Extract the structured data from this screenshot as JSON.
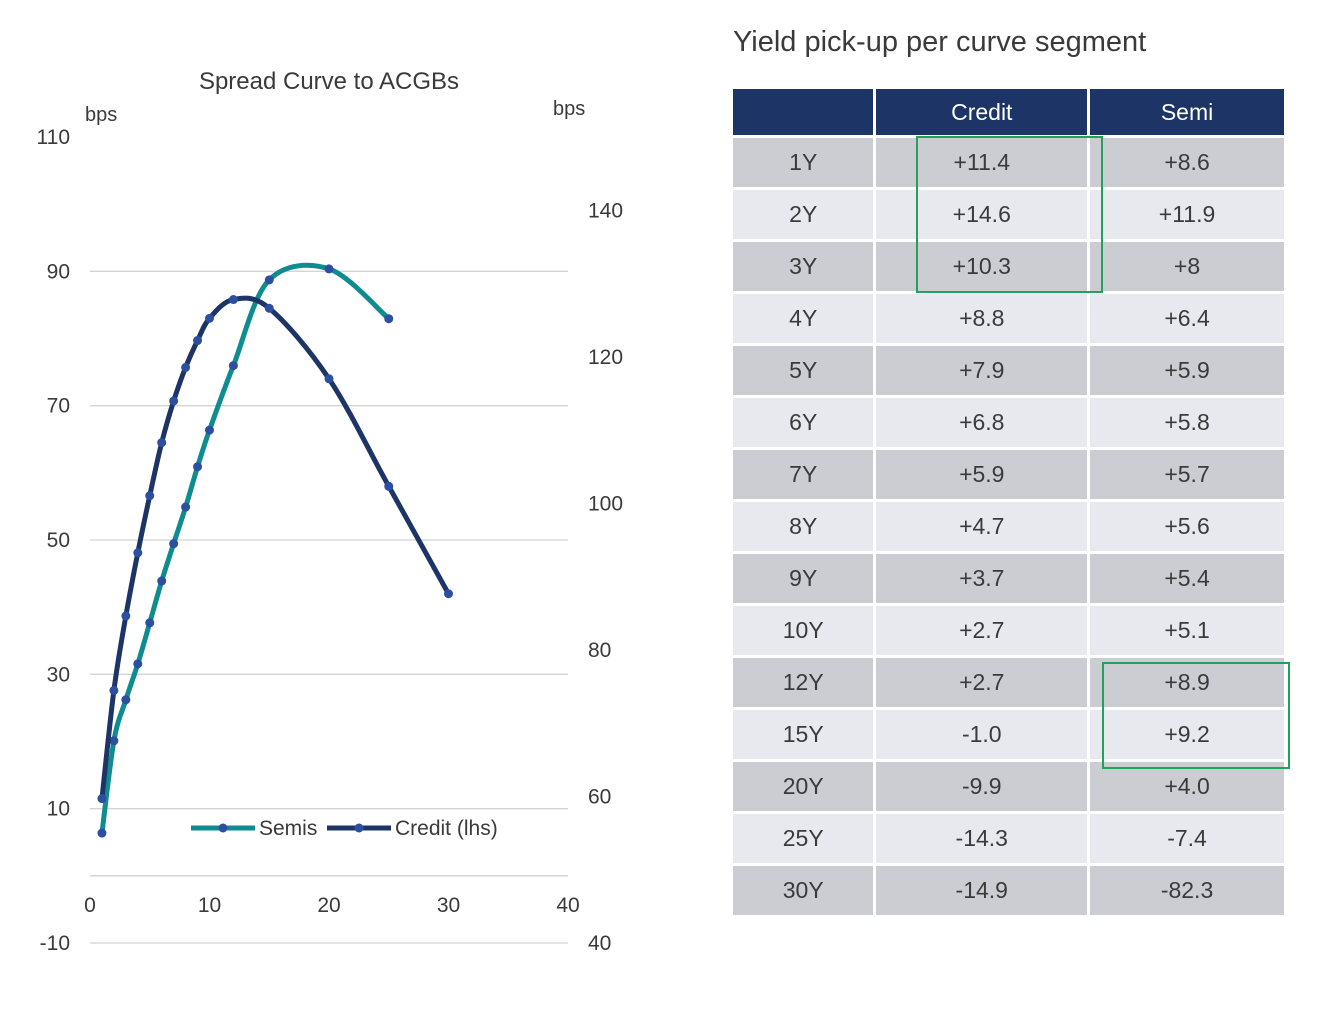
{
  "chart_data": {
    "type": "line",
    "title": "Spread Curve to ACGBs",
    "left_axis_unit": "bps",
    "right_axis_unit": "bps",
    "x_ticks": [
      0,
      10,
      20,
      30,
      40
    ],
    "xlim": [
      0,
      40
    ],
    "y_left_ticks": [
      110,
      90,
      70,
      50,
      30,
      10,
      -10
    ],
    "ylim_left": [
      -10,
      110
    ],
    "y_right_ticks": [
      140,
      120,
      100,
      80,
      60,
      40
    ],
    "ylim_right": [
      40,
      150
    ],
    "legend_position": "bottom-center",
    "series": [
      {
        "name": "Semis",
        "axis": "right",
        "color": "#0e8c8f",
        "x": [
          1,
          2,
          3,
          4,
          5,
          6,
          7,
          8,
          9,
          10,
          12,
          15,
          20,
          25
        ],
        "y": [
          55.0,
          67.6,
          73.2,
          78.1,
          83.7,
          89.4,
          94.5,
          99.5,
          105.0,
          110.0,
          118.8,
          130.5,
          132.0,
          125.2
        ]
      },
      {
        "name": "Credit (lhs)",
        "axis": "left",
        "color": "#1c3566",
        "x": [
          1,
          2,
          3,
          4,
          5,
          6,
          7,
          8,
          9,
          10,
          12,
          15,
          20,
          25,
          30
        ],
        "y": [
          11.5,
          27.6,
          38.7,
          48.1,
          56.6,
          64.5,
          70.7,
          75.7,
          79.7,
          83.0,
          85.8,
          84.5,
          74.0,
          58.0,
          42.0
        ]
      }
    ]
  },
  "table": {
    "title": "Yield pick-up per curve segment",
    "headers": [
      "",
      "Credit",
      "Semi"
    ],
    "rows": [
      [
        "1Y",
        "+11.4",
        "+8.6"
      ],
      [
        "2Y",
        "+14.6",
        "+11.9"
      ],
      [
        "3Y",
        "+10.3",
        "+8"
      ],
      [
        "4Y",
        "+8.8",
        "+6.4"
      ],
      [
        "5Y",
        "+7.9",
        "+5.9"
      ],
      [
        "6Y",
        "+6.8",
        "+5.8"
      ],
      [
        "7Y",
        "+5.9",
        "+5.7"
      ],
      [
        "8Y",
        "+4.7",
        "+5.6"
      ],
      [
        "9Y",
        "+3.7",
        "+5.4"
      ],
      [
        "10Y",
        "+2.7",
        "+5.1"
      ],
      [
        "12Y",
        "+2.7",
        "+8.9"
      ],
      [
        "15Y",
        "-1.0",
        "+9.2"
      ],
      [
        "20Y",
        "-9.9",
        "+4.0"
      ],
      [
        "25Y",
        "-14.3",
        "-7.4"
      ],
      [
        "30Y",
        "-14.9",
        "-82.3"
      ]
    ],
    "highlight_color": "#1fa35a",
    "header_color": "#1c3566"
  }
}
